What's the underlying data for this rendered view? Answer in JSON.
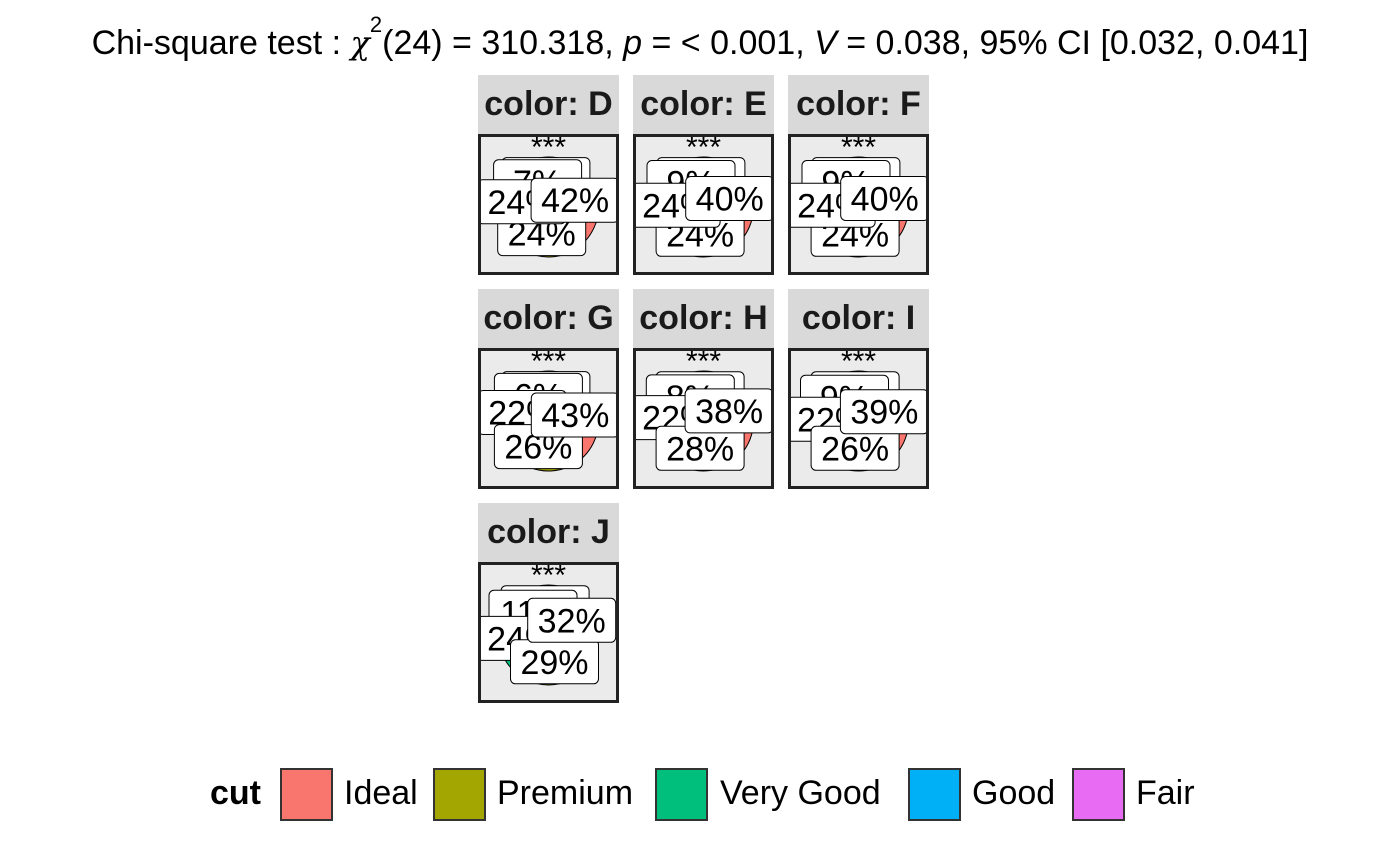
{
  "title": {
    "prefix": "Chi-square test : ",
    "chi": "χ",
    "sup": "2",
    "df": "(24) = 310.318, ",
    "p": "p",
    "p_rest": " = < 0.001, ",
    "v": "V",
    "v_rest": " = 0.038, 95% CI [0.032, 0.041]"
  },
  "legend": {
    "title": "cut",
    "items": [
      {
        "label": "Ideal",
        "color": "#f8766d"
      },
      {
        "label": "Premium",
        "color": "#a3a500"
      },
      {
        "label": "Very Good",
        "color": "#00bf7d"
      },
      {
        "label": "Good",
        "color": "#00b0f6"
      },
      {
        "label": "Fair",
        "color": "#e76bf3"
      }
    ]
  },
  "chart_data": {
    "type": "pie",
    "facet_variable": "color",
    "categories": [
      "Ideal",
      "Premium",
      "Very Good",
      "Good",
      "Fair"
    ],
    "facets": [
      {
        "label": "color: D",
        "significance": "***",
        "values": [
          42,
          24,
          24,
          7,
          3
        ],
        "labels": [
          "42%",
          "24%",
          "24%",
          "",
          ""
        ]
      },
      {
        "label": "color: E",
        "significance": "***",
        "values": [
          40,
          24,
          24,
          9,
          3
        ],
        "labels": [
          "40%",
          "24%",
          "24%",
          "",
          ""
        ]
      },
      {
        "label": "color: F",
        "significance": "***",
        "values": [
          40,
          24,
          24,
          9,
          3
        ],
        "labels": [
          "40%",
          "24%",
          "24%",
          "",
          ""
        ]
      },
      {
        "label": "color: G",
        "significance": "***",
        "values": [
          43,
          26,
          22,
          6,
          3
        ],
        "labels": [
          "43%",
          "26%",
          "",
          "",
          ""
        ]
      },
      {
        "label": "color: H",
        "significance": "***",
        "values": [
          38,
          28,
          22,
          8,
          4
        ],
        "labels": [
          "38%",
          "28%",
          "",
          "",
          ""
        ]
      },
      {
        "label": "color: I",
        "significance": "***",
        "values": [
          39,
          26,
          22,
          9,
          4
        ],
        "labels": [
          "39%",
          "26%",
          "",
          "",
          ""
        ]
      },
      {
        "label": "color: J",
        "significance": "***",
        "values": [
          32,
          29,
          24,
          11,
          4
        ],
        "labels": [
          "32%",
          "29%",
          "",
          "",
          ""
        ]
      }
    ]
  }
}
